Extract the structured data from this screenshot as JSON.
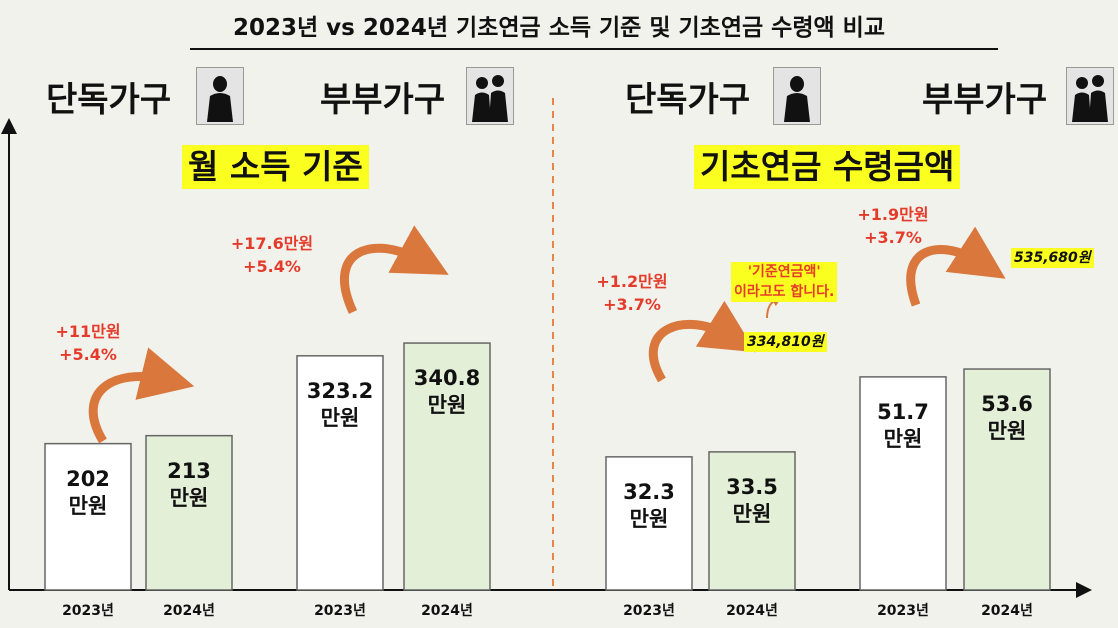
{
  "title": "2023년 vs 2024년 기초연금 소득 기준 및 기초연금 수령액 비교",
  "headers": {
    "left_single": "단독가구",
    "left_couple": "부부가구",
    "right_single": "단독가구",
    "right_couple": "부부가구"
  },
  "icons": {
    "single": "single-person-icon",
    "couple": "couple-icon"
  },
  "sections": {
    "left": "월 소득 기준",
    "right": "기초연금 수령금액"
  },
  "notes": {
    "alias_line1": "'기준연금액'",
    "alias_line2": "이라고도 합니다.",
    "won_single": "334,810원",
    "won_couple": "535,680원"
  },
  "colors": {
    "bar_2023": "#ffffff",
    "bar_2024": "#e4efd8",
    "highlight": "#fbff1f",
    "change_text": "#e53b2a",
    "arrow": "#d9773c"
  },
  "chart_data": [
    {
      "type": "bar",
      "title": "월 소득 기준",
      "groups": [
        {
          "name": "단독가구",
          "bars": [
            {
              "category": "2023년",
              "value": 202,
              "line1": "202",
              "unit": "만원"
            },
            {
              "category": "2024년",
              "value": 213,
              "line1": "213",
              "unit": "만원"
            }
          ],
          "change": {
            "amount": "+11만원",
            "percent": "+5.4%"
          }
        },
        {
          "name": "부부가구",
          "bars": [
            {
              "category": "2023년",
              "value": 323.2,
              "line1": "323.2",
              "unit": "만원"
            },
            {
              "category": "2024년",
              "value": 340.8,
              "line1": "340.8",
              "unit": "만원"
            }
          ],
          "change": {
            "amount": "+17.6만원",
            "percent": "+5.4%"
          }
        }
      ]
    },
    {
      "type": "bar",
      "title": "기초연금 수령금액",
      "groups": [
        {
          "name": "단독가구",
          "bars": [
            {
              "category": "2023년",
              "value": 32.3,
              "line1": "32.3",
              "unit": "만원"
            },
            {
              "category": "2024년",
              "value": 33.5,
              "line1": "33.5",
              "unit": "만원"
            }
          ],
          "change": {
            "amount": "+1.2만원",
            "percent": "+3.7%"
          }
        },
        {
          "name": "부부가구",
          "bars": [
            {
              "category": "2023년",
              "value": 51.7,
              "line1": "51.7",
              "unit": "만원"
            },
            {
              "category": "2024년",
              "value": 53.6,
              "line1": "53.6",
              "unit": "만원"
            }
          ],
          "change": {
            "amount": "+1.9만원",
            "percent": "+3.7%"
          }
        }
      ]
    }
  ]
}
